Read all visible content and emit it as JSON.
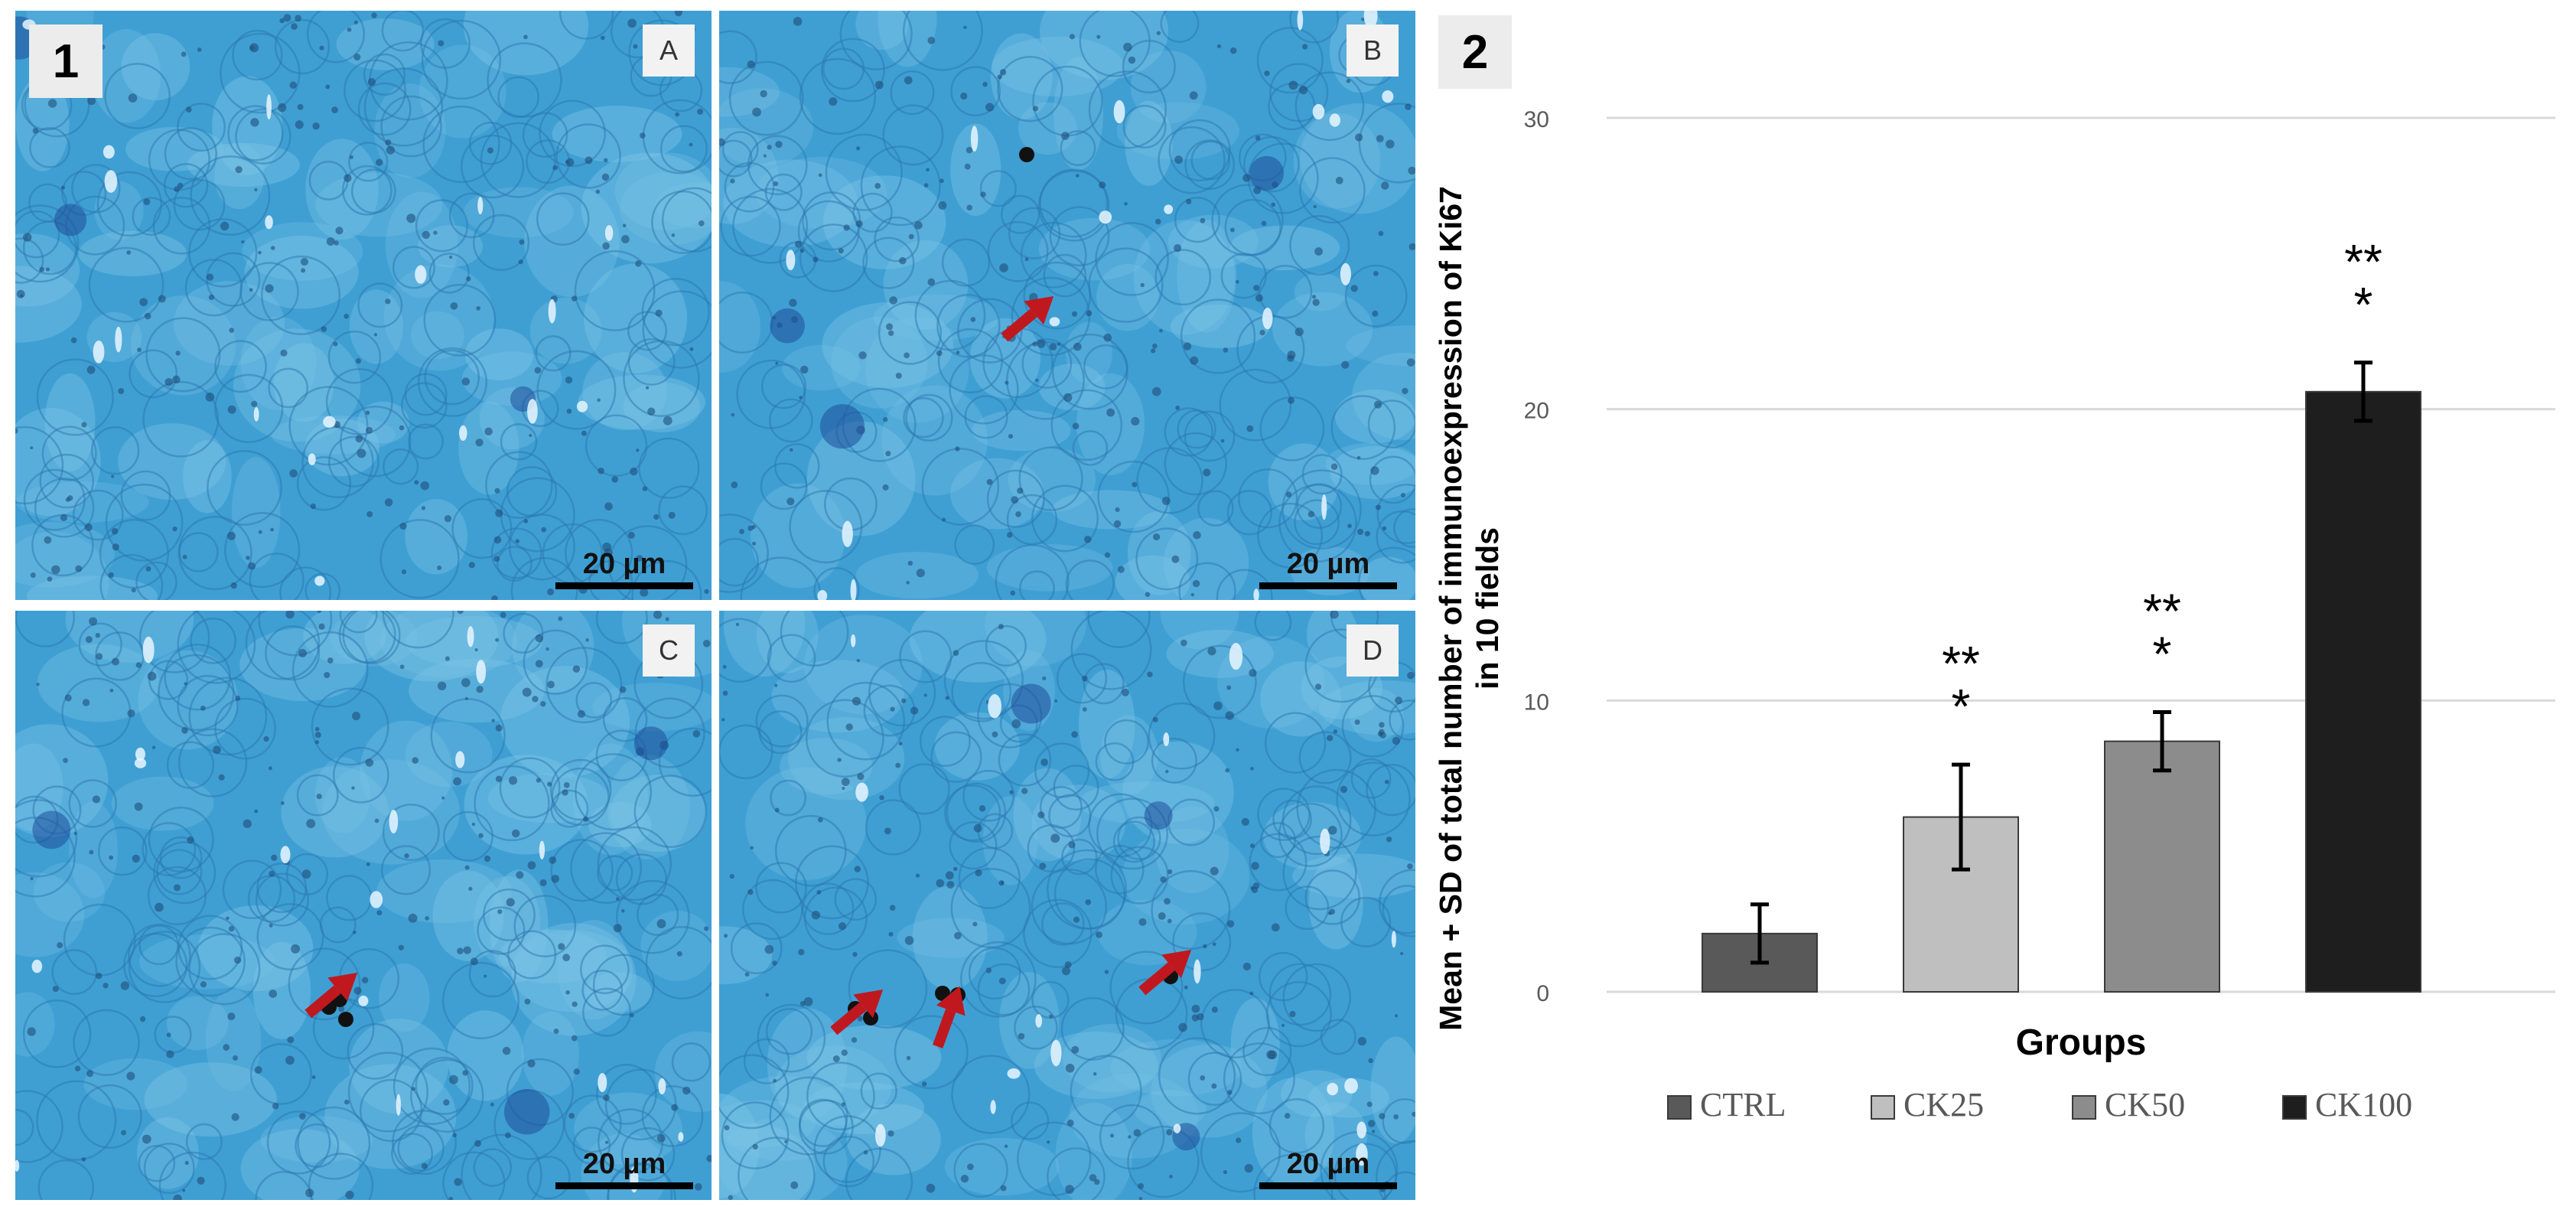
{
  "panel_numbers": {
    "micrographs": "1",
    "chart": "2"
  },
  "micrographs": {
    "scale_label": "20 µm",
    "panels": [
      {
        "letter": "A",
        "ki67_marks": 0
      },
      {
        "letter": "B",
        "ki67_marks": 1
      },
      {
        "letter": "C",
        "ki67_marks": 1
      },
      {
        "letter": "D",
        "ki67_marks": 3
      }
    ]
  },
  "colors": {
    "stain": "#3f9fd3",
    "arrow": "#c0181f",
    "CTRL": "#595959",
    "CK25": "#bfbfbf",
    "CK50": "#8c8c8c",
    "CK100": "#1e1e1e"
  },
  "chart_data": {
    "type": "bar",
    "categories": [
      "CTRL",
      "CK25",
      "CK50",
      "CK100"
    ],
    "values": [
      2,
      6,
      8.6,
      20.6
    ],
    "errors": [
      1,
      1.8,
      1,
      1
    ],
    "annotations": [
      "",
      "**\n*",
      "**\n*",
      "**\n*"
    ],
    "xlabel": "Groups",
    "ylabel_lines": [
      "Mean + SD of total number of immunoexpression of Ki67",
      "in 10 fields"
    ],
    "ylim": [
      0,
      30
    ],
    "yticks": [
      0,
      10,
      20,
      30
    ],
    "grid": true,
    "legend": {
      "placement": "bottom",
      "entries": [
        "CTRL",
        "CK25",
        "CK50",
        "CK100"
      ]
    }
  }
}
